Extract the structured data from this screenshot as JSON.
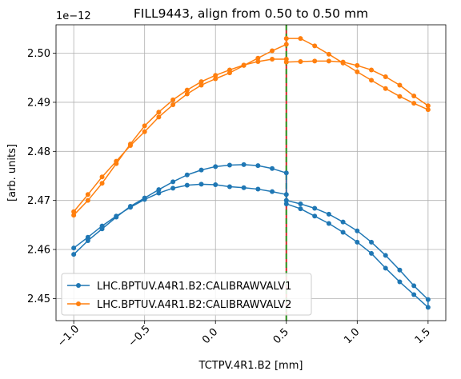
{
  "chart_data": {
    "type": "line",
    "title": "FILL9443, align from 0.50 to 0.50 mm",
    "xlabel": "TCTPV.4R1.B2 [mm]",
    "ylabel": "[arb. units]",
    "y_offset_label": "1e−12",
    "xlim": [
      -1.125,
      1.625
    ],
    "ylim": [
      2.4455,
      2.5058
    ],
    "x_ticks": [
      -1.0,
      -0.5,
      0.0,
      0.5,
      1.0,
      1.5
    ],
    "x_tick_labels": [
      "−1.0",
      "−0.5",
      "0.0",
      "0.5",
      "1.0",
      "1.5"
    ],
    "y_ticks": [
      2.45,
      2.46,
      2.47,
      2.48,
      2.49,
      2.5
    ],
    "y_tick_labels": [
      "2.45",
      "2.46",
      "2.47",
      "2.48",
      "2.49",
      "2.50"
    ],
    "grid": true,
    "legend_position": "lower-left",
    "vlines": [
      {
        "x": 0.5,
        "color": "#d62728"
      },
      {
        "x": 0.5,
        "color": "#2ca02c"
      }
    ],
    "series": [
      {
        "name": "LHC.BPTUV.A4R1.B2:CALIBRAWVALV1",
        "color": "#1f77b4",
        "x": [
          -1.0,
          -0.9,
          -0.8,
          -0.7,
          -0.6,
          -0.5,
          -0.4,
          -0.3,
          -0.2,
          -0.1,
          0.0,
          0.1,
          0.2,
          0.3,
          0.4,
          0.5,
          0.5,
          0.6,
          0.7,
          0.8,
          0.9,
          1.0,
          1.1,
          1.2,
          1.3,
          1.4,
          1.5,
          1.5,
          1.4,
          1.3,
          1.2,
          1.1,
          1.0,
          0.9,
          0.8,
          0.7,
          0.6,
          0.5,
          0.5,
          0.4,
          0.3,
          0.2,
          0.1,
          0.0,
          -0.1,
          -0.2,
          -0.3,
          -0.4,
          -0.5,
          -0.6,
          -0.7,
          -0.8,
          -0.9,
          -1.0
        ],
        "y": [
          2.4603,
          2.4625,
          2.4648,
          2.4668,
          2.4686,
          2.4702,
          2.4715,
          2.4725,
          2.4731,
          2.4733,
          2.4732,
          2.4728,
          2.4726,
          2.4723,
          2.4718,
          2.4712,
          2.47,
          2.4693,
          2.4684,
          2.4672,
          2.4656,
          2.4638,
          2.4615,
          2.4588,
          2.4558,
          2.4526,
          2.4498,
          2.4482,
          2.4508,
          2.4534,
          2.4562,
          2.4592,
          2.4615,
          2.4635,
          2.4653,
          2.4668,
          2.4683,
          2.4693,
          2.4756,
          2.4765,
          2.4771,
          2.4773,
          2.4772,
          2.4769,
          2.4762,
          2.4752,
          2.4738,
          2.4722,
          2.4705,
          2.4688,
          2.4666,
          2.4642,
          2.4618,
          2.459
        ]
      },
      {
        "name": "LHC.BPTUV.A4R1.B2:CALIBRAWVALV2",
        "color": "#ff7f0e",
        "x": [
          -1.0,
          -0.9,
          -0.8,
          -0.7,
          -0.6,
          -0.5,
          -0.4,
          -0.3,
          -0.2,
          -0.1,
          0.0,
          0.1,
          0.2,
          0.3,
          0.4,
          0.5,
          0.5,
          0.6,
          0.7,
          0.8,
          0.9,
          1.0,
          1.1,
          1.2,
          1.3,
          1.4,
          1.5,
          1.5,
          1.4,
          1.3,
          1.2,
          1.1,
          1.0,
          0.9,
          0.8,
          0.7,
          0.6,
          0.5,
          0.5,
          0.4,
          0.3,
          0.2,
          0.1,
          0.0,
          -0.1,
          -0.2,
          -0.3,
          -0.4,
          -0.5,
          -0.6,
          -0.7,
          -0.8,
          -0.9,
          -1.0
        ],
        "y": [
          2.4677,
          2.4712,
          2.4748,
          2.478,
          2.4812,
          2.484,
          2.487,
          2.4895,
          2.4917,
          2.4935,
          2.4948,
          2.496,
          2.4975,
          2.499,
          2.5005,
          2.5018,
          2.503,
          2.503,
          2.5015,
          2.4998,
          2.498,
          2.4962,
          2.4945,
          2.4928,
          2.4912,
          2.4898,
          2.4885,
          2.4893,
          2.4913,
          2.4935,
          2.4952,
          2.4966,
          2.4975,
          2.4982,
          2.4984,
          2.4984,
          2.4983,
          2.4982,
          2.4988,
          2.4988,
          2.4983,
          2.4976,
          2.4966,
          2.4955,
          2.4942,
          2.4925,
          2.4905,
          2.488,
          2.4852,
          2.4815,
          2.4775,
          2.4735,
          2.47,
          2.467
        ]
      }
    ]
  }
}
